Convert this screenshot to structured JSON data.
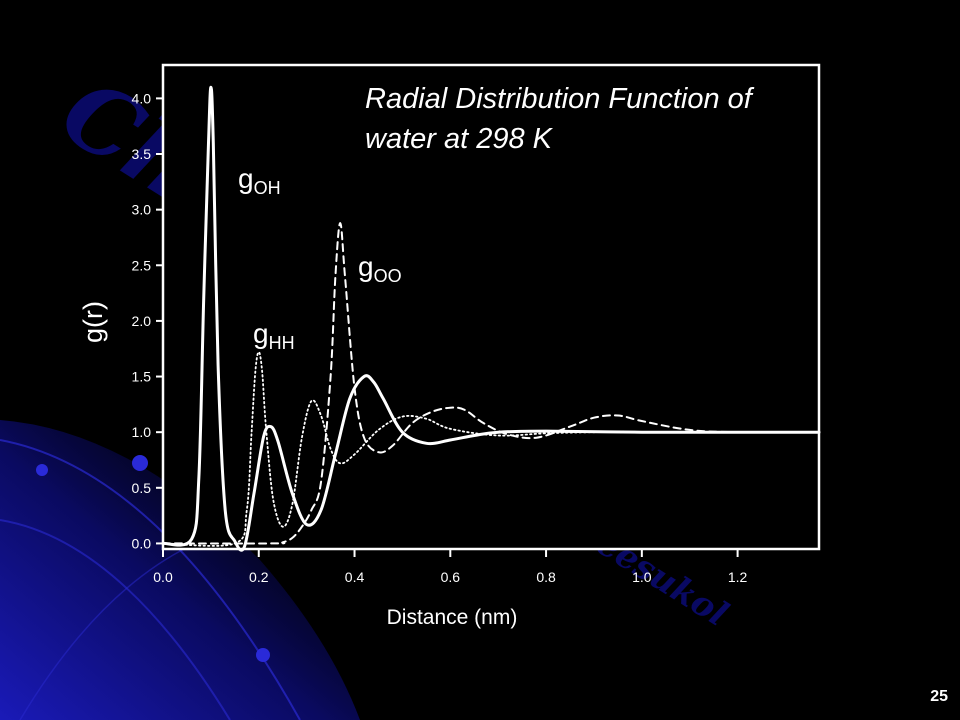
{
  "slide": {
    "page_number": "25",
    "watermark": {
      "main": "Chem:KU-KPS",
      "sub": "Piti Treesukol"
    }
  },
  "colors": {
    "background": "#000000",
    "foreground": "#ffffff",
    "accent": "#1a1ab8",
    "watermark": "#0a0a6e"
  },
  "chart_data": {
    "type": "line",
    "title_lines": [
      "Radial Distribution Function of",
      "water at 298 K"
    ],
    "xlabel": "Distance (nm)",
    "ylabel": "g(r)",
    "xlim": [
      0.0,
      1.37
    ],
    "ylim": [
      -0.05,
      4.3
    ],
    "xticks": [
      "0.0",
      "0.2",
      "0.4",
      "0.6",
      "0.8",
      "1.0",
      "1.2"
    ],
    "yticks": [
      "0.0",
      "0.5",
      "1.0",
      "1.5",
      "2.0",
      "2.5",
      "3.0",
      "3.5",
      "4.0"
    ],
    "grid": false,
    "legend": "none",
    "series": [
      {
        "label": {
          "base": "g",
          "sub": "OH"
        },
        "style": "solid",
        "x": [
          0.0,
          0.06,
          0.075,
          0.085,
          0.095,
          0.1,
          0.105,
          0.115,
          0.13,
          0.15,
          0.17,
          0.19,
          0.21,
          0.225,
          0.24,
          0.27,
          0.3,
          0.33,
          0.36,
          0.39,
          0.42,
          0.44,
          0.46,
          0.5,
          0.55,
          0.6,
          0.65,
          0.7,
          0.8,
          1.0,
          1.2,
          1.37
        ],
        "y": [
          0.0,
          0.04,
          0.6,
          2.2,
          3.6,
          4.1,
          3.6,
          1.6,
          0.3,
          0.02,
          -0.03,
          0.45,
          0.96,
          1.05,
          0.92,
          0.45,
          0.17,
          0.3,
          0.8,
          1.3,
          1.5,
          1.45,
          1.3,
          1.0,
          0.9,
          0.93,
          0.97,
          1.0,
          1.01,
          1.0,
          1.0,
          1.0
        ]
      },
      {
        "label": {
          "base": "g",
          "sub": "HH"
        },
        "style": "dotted",
        "x": [
          0.0,
          0.15,
          0.175,
          0.185,
          0.193,
          0.2,
          0.207,
          0.215,
          0.23,
          0.25,
          0.27,
          0.29,
          0.31,
          0.33,
          0.35,
          0.37,
          0.4,
          0.45,
          0.5,
          0.55,
          0.6,
          0.7,
          0.8,
          0.9,
          1.0,
          1.2,
          1.37
        ],
        "y": [
          0.0,
          0.0,
          0.3,
          1.0,
          1.55,
          1.72,
          1.55,
          1.05,
          0.4,
          0.15,
          0.35,
          0.95,
          1.28,
          1.15,
          0.85,
          0.72,
          0.8,
          1.02,
          1.14,
          1.12,
          1.03,
          0.97,
          0.99,
          1.0,
          1.0,
          1.0,
          1.0
        ]
      },
      {
        "label": {
          "base": "g",
          "sub": "OO"
        },
        "style": "dashed",
        "x": [
          0.0,
          0.23,
          0.25,
          0.27,
          0.29,
          0.31,
          0.33,
          0.35,
          0.36,
          0.37,
          0.38,
          0.4,
          0.42,
          0.45,
          0.48,
          0.52,
          0.56,
          0.6,
          0.63,
          0.67,
          0.72,
          0.78,
          0.85,
          0.9,
          0.95,
          1.0,
          1.1,
          1.2,
          1.37
        ],
        "y": [
          0.0,
          0.0,
          0.01,
          0.05,
          0.15,
          0.3,
          0.55,
          1.5,
          2.4,
          2.88,
          2.4,
          1.4,
          0.95,
          0.82,
          0.88,
          1.08,
          1.18,
          1.22,
          1.2,
          1.08,
          0.98,
          0.95,
          1.05,
          1.13,
          1.15,
          1.1,
          1.02,
          1.0,
          1.0
        ]
      }
    ]
  }
}
